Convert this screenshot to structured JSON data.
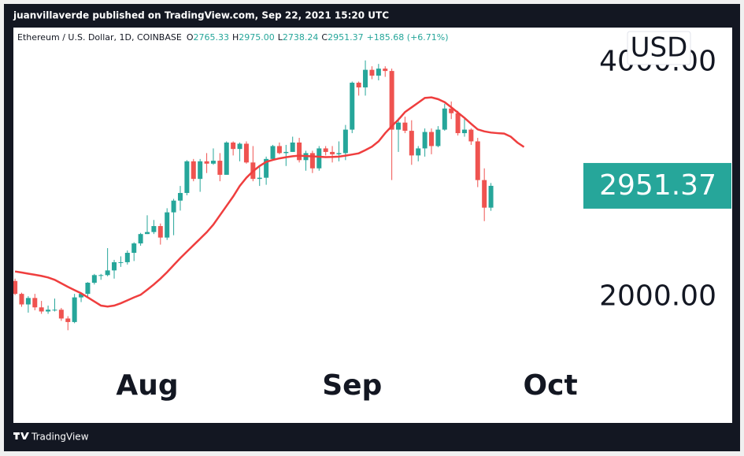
{
  "header": "juanvillaverde published on TradingView.com, Sep 22, 2021 15:20 UTC",
  "footer": "TradingView",
  "chart_data": {
    "type": "candlestick",
    "title": "Ethereum / U.S. Dollar, 1D, COINBASE",
    "ohlc_legend": [
      {
        "label": "O",
        "value": "2765.33"
      },
      {
        "label": "H",
        "value": "2975.00"
      },
      {
        "label": "L",
        "value": "2738.24"
      },
      {
        "label": "C",
        "value": "2951.37"
      }
    ],
    "change": "+185.68 (+6.71%)",
    "currency": "USD",
    "price_label": "2951.37",
    "up_color": "#26a69a",
    "down_color": "#ef5350",
    "categories": [
      null,
      null,
      null,
      null,
      null,
      null,
      null,
      null,
      null,
      null,
      null,
      null,
      null,
      null,
      null,
      null,
      null,
      null,
      null,
      null,
      null,
      null,
      null,
      null,
      null,
      null,
      null,
      null,
      null,
      null,
      null,
      null,
      null,
      null,
      null,
      null,
      null,
      null,
      null,
      null,
      null,
      null,
      null,
      null,
      null,
      null,
      null,
      null,
      null,
      null,
      null,
      null,
      null,
      null,
      null,
      null,
      null,
      null,
      null,
      null,
      null,
      null,
      null,
      null,
      null,
      null,
      null,
      null,
      null,
      null,
      null,
      null,
      null,
      null,
      null,
      null,
      null,
      null
    ],
    "series": [
      {
        "open": [
          2140,
          2030,
          1940,
          1995,
          1915,
          1880,
          1895,
          1895,
          1820,
          1790,
          2000,
          2030,
          2125,
          2190,
          2190,
          2230,
          2300,
          2300,
          2380,
          2460,
          2540,
          2557,
          2608,
          2510,
          2725,
          2825,
          2890,
          3160,
          3010,
          3160,
          3140,
          3165,
          3045,
          3320,
          3265,
          3310,
          3150,
          3010,
          3020,
          3180,
          3290,
          3230,
          3240,
          3320,
          3170,
          3230,
          3100,
          3270,
          3240,
          3220,
          3230,
          3430,
          3830,
          3790,
          3940,
          3890,
          3950,
          3930,
          3430,
          3490,
          3420,
          3210,
          3270,
          3410,
          3290,
          3430,
          3610,
          3570,
          3400,
          3430,
          3330,
          3000,
          2765,
          null,
          null,
          null,
          null,
          null
        ],
        "high": [
          2160,
          2040,
          2010,
          2030,
          1970,
          1930,
          1990,
          1910,
          1840,
          2030,
          2040,
          2130,
          2200,
          2200,
          2420,
          2320,
          2350,
          2400,
          2470,
          2550,
          2700,
          2660,
          2630,
          2760,
          2840,
          2950,
          3170,
          3180,
          3180,
          3230,
          3270,
          3230,
          3330,
          3330,
          3320,
          3330,
          3290,
          3120,
          3200,
          3300,
          3320,
          3300,
          3370,
          3360,
          3250,
          3250,
          3290,
          3290,
          3290,
          3330,
          3470,
          3840,
          3840,
          4020,
          3970,
          3990,
          3970,
          3950,
          3530,
          3540,
          3510,
          3290,
          3440,
          3440,
          3460,
          3650,
          3670,
          3590,
          3520,
          3440,
          3360,
          3100,
          2975,
          null,
          null,
          null,
          null,
          null
        ],
        "low": [
          2020,
          1920,
          1870,
          1890,
          1860,
          1860,
          1880,
          1800,
          1720,
          1780,
          1960,
          2000,
          2110,
          2150,
          2180,
          2160,
          2260,
          2280,
          2310,
          2440,
          2540,
          2540,
          2450,
          2490,
          2530,
          2740,
          2870,
          2990,
          2900,
          3060,
          3130,
          2990,
          3045,
          3210,
          3160,
          3140,
          2990,
          2950,
          2960,
          3170,
          3220,
          3120,
          3240,
          3150,
          3080,
          3060,
          3080,
          3210,
          3150,
          3160,
          3170,
          3400,
          3720,
          3720,
          3860,
          3850,
          3880,
          3000,
          3240,
          3400,
          3130,
          3160,
          3200,
          3220,
          3280,
          3420,
          3520,
          3380,
          3370,
          3300,
          2940,
          2650,
          2738,
          null,
          null,
          null,
          null,
          null
        ],
        "close": [
          2030,
          1940,
          1995,
          1915,
          1880,
          1895,
          1895,
          1820,
          1790,
          2000,
          2030,
          2125,
          2190,
          2190,
          2230,
          2300,
          2300,
          2380,
          2460,
          2540,
          2557,
          2608,
          2510,
          2725,
          2825,
          2890,
          3160,
          3010,
          3160,
          3140,
          3165,
          3045,
          3320,
          3265,
          3310,
          3150,
          3010,
          3020,
          3180,
          3290,
          3230,
          3240,
          3320,
          3170,
          3230,
          3100,
          3270,
          3240,
          3220,
          3230,
          3430,
          3830,
          3790,
          3940,
          3890,
          3950,
          3930,
          3430,
          3490,
          3420,
          3210,
          3270,
          3410,
          3290,
          3430,
          3610,
          3570,
          3400,
          3430,
          3330,
          3000,
          2765,
          2951,
          null,
          null,
          null,
          null,
          null
        ]
      },
      {
        "type": "line",
        "color": "#ef3e3e",
        "values": [
          2221,
          2212,
          2202,
          2193,
          2183,
          2170,
          2150,
          2120,
          2090,
          2062,
          2035,
          2000,
          1965,
          1930,
          1922,
          1930,
          1950,
          1975,
          2000,
          2022,
          2065,
          2110,
          2160,
          2215,
          2275,
          2335,
          2390,
          2445,
          2500,
          2555,
          2620,
          2700,
          2780,
          2860,
          2950,
          3020,
          3075,
          3120,
          3155,
          3172,
          3185,
          3195,
          3203,
          3208,
          3205,
          3202,
          3199,
          3196,
          3197,
          3200,
          3208,
          3218,
          3228,
          3255,
          3285,
          3330,
          3400,
          3460,
          3515,
          3580,
          3620,
          3660,
          3700,
          3705,
          3690,
          3664,
          3620,
          3575,
          3530,
          3480,
          3432,
          3415,
          3405,
          3400,
          3396,
          3370,
          3320,
          3282
        ]
      }
    ],
    "xlim": [
      -0.25,
      108.5
    ],
    "xticks": [
      {
        "value": 20,
        "label": "Aug"
      },
      {
        "value": 51,
        "label": "Sep"
      },
      {
        "value": 81,
        "label": "Oct"
      }
    ],
    "ylim": [
      930,
      4300
    ],
    "yticks": [
      {
        "value": 2000,
        "label": "2000.00"
      },
      {
        "value": 4000,
        "label": "4000.00"
      }
    ]
  }
}
